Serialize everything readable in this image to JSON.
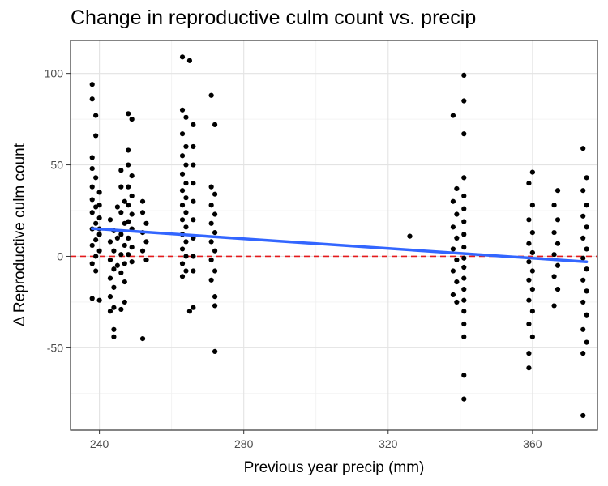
{
  "chart_data": {
    "type": "scatter",
    "title": "Change in reproductive culm count vs. precip",
    "xlabel": "Previous year precip (mm)",
    "ylabel": "Δ Reproductive culm count",
    "xlim": [
      232,
      378
    ],
    "ylim": [
      -95,
      118
    ],
    "x_ticks": [
      240,
      280,
      320,
      360
    ],
    "x_tick_labels": [
      "240",
      "280",
      "320",
      "360"
    ],
    "y_ticks": [
      -50,
      0,
      50,
      100
    ],
    "y_tick_labels": [
      "-50",
      "0",
      "50",
      "100"
    ],
    "grid": true,
    "reference_line": {
      "y": 0,
      "style": "dashed",
      "color": "#e41a1c"
    },
    "trend_line": {
      "x": [
        238,
        375
      ],
      "y": [
        15.2,
        -3.0
      ],
      "color": "#3366ff"
    },
    "point_color": "#000000",
    "points": [
      [
        238,
        94
      ],
      [
        238,
        86
      ],
      [
        239,
        77
      ],
      [
        239,
        66
      ],
      [
        238,
        54
      ],
      [
        238,
        48
      ],
      [
        239,
        43
      ],
      [
        238,
        38
      ],
      [
        240,
        35
      ],
      [
        238,
        31
      ],
      [
        239,
        27
      ],
      [
        238,
        24
      ],
      [
        240,
        21
      ],
      [
        239,
        18
      ],
      [
        238,
        15
      ],
      [
        240,
        12
      ],
      [
        239,
        9
      ],
      [
        238,
        6
      ],
      [
        240,
        3
      ],
      [
        239,
        0
      ],
      [
        238,
        -4
      ],
      [
        239,
        -8
      ],
      [
        238,
        -23
      ],
      [
        240,
        -24
      ],
      [
        240,
        28
      ],
      [
        240,
        15
      ],
      [
        243,
        20
      ],
      [
        244,
        14
      ],
      [
        243,
        8
      ],
      [
        244,
        3
      ],
      [
        243,
        -2
      ],
      [
        244,
        -7
      ],
      [
        243,
        -12
      ],
      [
        244,
        -17
      ],
      [
        243,
        -22
      ],
      [
        244,
        -28
      ],
      [
        243,
        -30
      ],
      [
        244,
        -40
      ],
      [
        244,
        -44
      ],
      [
        245,
        27
      ],
      [
        245,
        10
      ],
      [
        245,
        -5
      ],
      [
        246,
        47
      ],
      [
        246,
        38
      ],
      [
        247,
        30
      ],
      [
        246,
        24
      ],
      [
        247,
        18
      ],
      [
        246,
        12
      ],
      [
        247,
        6
      ],
      [
        246,
        1
      ],
      [
        247,
        -4
      ],
      [
        246,
        -9
      ],
      [
        247,
        -14
      ],
      [
        247,
        -25
      ],
      [
        246,
        -29
      ],
      [
        248,
        78
      ],
      [
        249,
        75
      ],
      [
        248,
        58
      ],
      [
        248,
        50
      ],
      [
        249,
        44
      ],
      [
        248,
        38
      ],
      [
        249,
        33
      ],
      [
        248,
        28
      ],
      [
        249,
        23
      ],
      [
        248,
        19
      ],
      [
        249,
        15
      ],
      [
        248,
        10
      ],
      [
        249,
        5
      ],
      [
        248,
        1
      ],
      [
        249,
        -3
      ],
      [
        252,
        30
      ],
      [
        252,
        24
      ],
      [
        253,
        18
      ],
      [
        252,
        13
      ],
      [
        253,
        8
      ],
      [
        252,
        3
      ],
      [
        253,
        -2
      ],
      [
        252,
        -45
      ],
      [
        263,
        109
      ],
      [
        265,
        107
      ],
      [
        263,
        80
      ],
      [
        264,
        76
      ],
      [
        263,
        67
      ],
      [
        264,
        60
      ],
      [
        263,
        55
      ],
      [
        264,
        50
      ],
      [
        263,
        45
      ],
      [
        264,
        40
      ],
      [
        263,
        36
      ],
      [
        264,
        32
      ],
      [
        263,
        28
      ],
      [
        264,
        24
      ],
      [
        263,
        20
      ],
      [
        264,
        16
      ],
      [
        263,
        12
      ],
      [
        264,
        8
      ],
      [
        263,
        4
      ],
      [
        264,
        0
      ],
      [
        263,
        -4
      ],
      [
        264,
        -8
      ],
      [
        263,
        -11
      ],
      [
        266,
        72
      ],
      [
        266,
        60
      ],
      [
        266,
        50
      ],
      [
        266,
        40
      ],
      [
        266,
        30
      ],
      [
        266,
        20
      ],
      [
        266,
        10
      ],
      [
        266,
        0
      ],
      [
        266,
        -8
      ],
      [
        266,
        -28
      ],
      [
        265,
        -30
      ],
      [
        271,
        88
      ],
      [
        272,
        72
      ],
      [
        271,
        38
      ],
      [
        272,
        34
      ],
      [
        271,
        28
      ],
      [
        272,
        23
      ],
      [
        271,
        18
      ],
      [
        272,
        13
      ],
      [
        271,
        8
      ],
      [
        272,
        3
      ],
      [
        271,
        -2
      ],
      [
        272,
        -8
      ],
      [
        271,
        -13
      ],
      [
        272,
        -22
      ],
      [
        272,
        -27
      ],
      [
        272,
        -52
      ],
      [
        326,
        11
      ],
      [
        338,
        77
      ],
      [
        339,
        37
      ],
      [
        338,
        30
      ],
      [
        339,
        23
      ],
      [
        338,
        16
      ],
      [
        339,
        10
      ],
      [
        338,
        4
      ],
      [
        339,
        -2
      ],
      [
        338,
        -8
      ],
      [
        339,
        -14
      ],
      [
        338,
        -21
      ],
      [
        339,
        -25
      ],
      [
        341,
        99
      ],
      [
        341,
        85
      ],
      [
        341,
        67
      ],
      [
        341,
        43
      ],
      [
        341,
        33
      ],
      [
        341,
        26
      ],
      [
        341,
        19
      ],
      [
        341,
        12
      ],
      [
        341,
        5
      ],
      [
        341,
        -1
      ],
      [
        341,
        -6
      ],
      [
        341,
        -12
      ],
      [
        341,
        -18
      ],
      [
        341,
        -24
      ],
      [
        341,
        -30
      ],
      [
        341,
        -37
      ],
      [
        341,
        -44
      ],
      [
        341,
        -65
      ],
      [
        341,
        -78
      ],
      [
        360,
        46
      ],
      [
        359,
        40
      ],
      [
        360,
        28
      ],
      [
        359,
        20
      ],
      [
        360,
        13
      ],
      [
        359,
        7
      ],
      [
        360,
        2
      ],
      [
        359,
        -3
      ],
      [
        360,
        -8
      ],
      [
        359,
        -13
      ],
      [
        360,
        -18
      ],
      [
        359,
        -24
      ],
      [
        360,
        -30
      ],
      [
        359,
        -37
      ],
      [
        360,
        -44
      ],
      [
        359,
        -53
      ],
      [
        359,
        -61
      ],
      [
        367,
        36
      ],
      [
        366,
        28
      ],
      [
        367,
        20
      ],
      [
        366,
        13
      ],
      [
        367,
        7
      ],
      [
        366,
        1
      ],
      [
        367,
        -5
      ],
      [
        366,
        -11
      ],
      [
        367,
        -18
      ],
      [
        366,
        -27
      ],
      [
        374,
        59
      ],
      [
        375,
        43
      ],
      [
        374,
        36
      ],
      [
        375,
        28
      ],
      [
        374,
        22
      ],
      [
        375,
        16
      ],
      [
        374,
        10
      ],
      [
        375,
        4
      ],
      [
        374,
        -1
      ],
      [
        375,
        -7
      ],
      [
        374,
        -13
      ],
      [
        375,
        -19
      ],
      [
        374,
        -25
      ],
      [
        375,
        -32
      ],
      [
        374,
        -40
      ],
      [
        375,
        -47
      ],
      [
        374,
        -53
      ],
      [
        374,
        -87
      ]
    ]
  }
}
